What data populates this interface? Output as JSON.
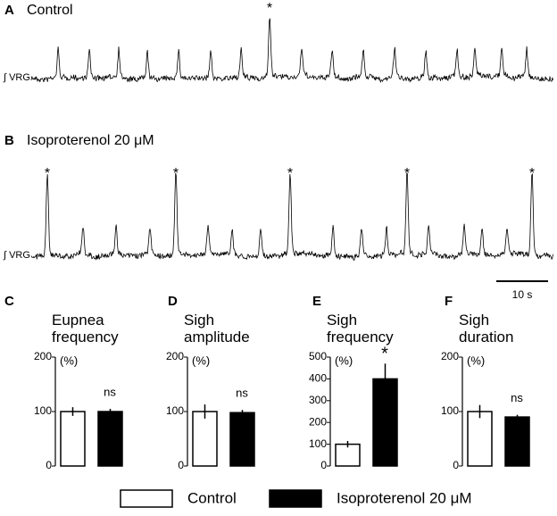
{
  "figure": {
    "panel_a": "A",
    "trace_a_title": "Control",
    "trace_a_label": "∫ VRG",
    "trace_a_marks": [
      "*"
    ],
    "panel_b": "B",
    "trace_b_title": "Isoproterenol 20 μM",
    "trace_b_label": "∫ VRG",
    "trace_b_marks": [
      "*",
      "*",
      "*",
      "*",
      "*"
    ],
    "scale_bar": "10 s",
    "legend": [
      {
        "name": "Control",
        "color": "#ffffff"
      },
      {
        "name": "Isoproterenol 20 μM",
        "color": "#000000"
      }
    ]
  },
  "chart_data": [
    {
      "type": "bar",
      "panel": "C",
      "title": "Eupnea frequency",
      "unit": "(%)",
      "ylim": [
        0,
        200
      ],
      "yticks": [
        0,
        100,
        200
      ],
      "series": [
        {
          "color": "#ffffff",
          "values": [
            100
          ],
          "errors": [
            8
          ]
        },
        {
          "color": "#000000",
          "values": [
            100
          ],
          "errors": [
            5
          ]
        }
      ],
      "annotation": "ns"
    },
    {
      "type": "bar",
      "panel": "D",
      "title": "Sigh amplitude",
      "unit": "(%)",
      "ylim": [
        0,
        200
      ],
      "yticks": [
        0,
        100,
        200
      ],
      "series": [
        {
          "color": "#ffffff",
          "values": [
            100
          ],
          "errors": [
            13
          ]
        },
        {
          "color": "#000000",
          "values": [
            98
          ],
          "errors": [
            5
          ]
        }
      ],
      "annotation": "ns"
    },
    {
      "type": "bar",
      "panel": "E",
      "title": "Sigh frequency",
      "unit": "(%)",
      "ylim": [
        0,
        500
      ],
      "yticks": [
        0,
        100,
        200,
        300,
        400,
        500
      ],
      "series": [
        {
          "color": "#ffffff",
          "values": [
            100
          ],
          "errors": [
            15
          ]
        },
        {
          "color": "#000000",
          "values": [
            400
          ],
          "errors": [
            70
          ]
        }
      ],
      "annotation": "*"
    },
    {
      "type": "bar",
      "panel": "F",
      "title": "Sigh duration",
      "unit": "(%)",
      "ylim": [
        0,
        200
      ],
      "yticks": [
        0,
        100,
        200
      ],
      "series": [
        {
          "color": "#ffffff",
          "values": [
            100
          ],
          "errors": [
            12
          ]
        },
        {
          "color": "#000000",
          "values": [
            90
          ],
          "errors": [
            4
          ]
        }
      ],
      "annotation": "ns"
    }
  ]
}
